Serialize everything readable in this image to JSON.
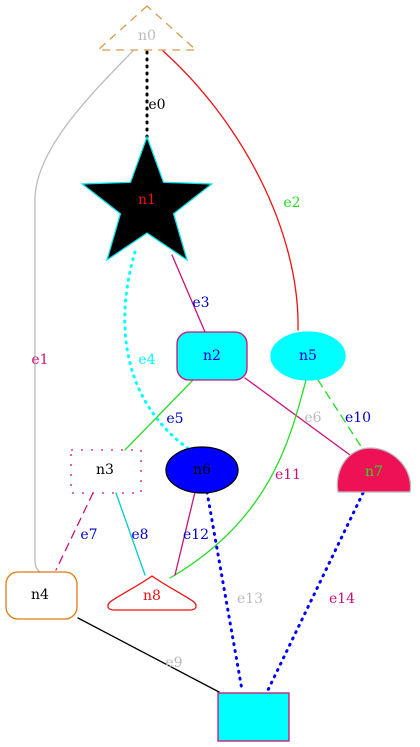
{
  "diagram": {
    "type": "directed-graph",
    "colors": {
      "red": "#ee1111",
      "crimson": "#dd1166",
      "green": "#22dd22",
      "cyan": "#00ffff",
      "blue": "#0000ff",
      "gray": "#bbbbbb",
      "black": "#000000",
      "orange": "#e07b10",
      "magenta": "#cc1177",
      "hotpink": "#ee1155"
    },
    "nodes": [
      {
        "id": "n0",
        "label": "n0",
        "shape": "triangle",
        "fill": "none",
        "stroke": "#d89a4a",
        "style": "dashed",
        "label_color": "#bbbbbb"
      },
      {
        "id": "n1",
        "label": "n1",
        "shape": "star",
        "fill": "#000000",
        "stroke": "#00e5ee",
        "style": "solid",
        "label_color": "#ee1111"
      },
      {
        "id": "n2",
        "label": "n2",
        "shape": "rounded-rectangle",
        "fill": "#00ffff",
        "stroke": "#cc1177",
        "style": "solid",
        "label_color": "#0000cc"
      },
      {
        "id": "n3",
        "label": "n3",
        "shape": "rectangle",
        "fill": "none",
        "stroke": "#dd1166",
        "style": "dotted",
        "label_color": "#000000"
      },
      {
        "id": "n4",
        "label": "n4",
        "shape": "rounded-rectangle",
        "fill": "none",
        "stroke": "#e07b10",
        "style": "solid",
        "label_color": "#000000"
      },
      {
        "id": "n5",
        "label": "n5",
        "shape": "ellipse",
        "fill": "#00ffff",
        "stroke": "#00ffff",
        "style": "solid",
        "label_color": "#0000cc"
      },
      {
        "id": "n6",
        "label": "n6",
        "shape": "ellipse",
        "fill": "#0000ff",
        "stroke": "#000000",
        "style": "solid",
        "label_color": "#000000"
      },
      {
        "id": "n7",
        "label": "n7",
        "shape": "egg",
        "fill": "#ee1155",
        "stroke": "#bbbbbb",
        "style": "solid",
        "label_color": "#22dd22"
      },
      {
        "id": "n8",
        "label": "n8",
        "shape": "rounded-triangle",
        "fill": "none",
        "stroke": "#ee1111",
        "style": "solid",
        "label_color": "#ee1111"
      },
      {
        "id": "n9",
        "label": "",
        "shape": "rectangle",
        "fill": "#00ffff",
        "stroke": "#cc1177",
        "style": "solid",
        "label_color": "#000000"
      }
    ],
    "edges": [
      {
        "id": "e0",
        "label": "e0",
        "from": "n0",
        "to": "n1",
        "color": "#000000",
        "style": "dotted",
        "label_color": "#000000"
      },
      {
        "id": "e1",
        "label": "e1",
        "from": "n0",
        "to": "n4",
        "color": "#bbbbbb",
        "style": "solid",
        "label_color": "#cc1177"
      },
      {
        "id": "e2",
        "label": "e2",
        "from": "n0",
        "to": "n5",
        "color": "#ee1111",
        "style": "solid",
        "label_color": "#22dd22"
      },
      {
        "id": "e3",
        "label": "e3",
        "from": "n1",
        "to": "n2",
        "color": "#cc1177",
        "style": "solid",
        "label_color": "#0000cc"
      },
      {
        "id": "e4",
        "label": "e4",
        "from": "n1",
        "to": "n6",
        "color": "#00ffff",
        "style": "dotted",
        "label_color": "#00ffff"
      },
      {
        "id": "e5",
        "label": "e5",
        "from": "n2",
        "to": "n3",
        "color": "#22dd22",
        "style": "solid",
        "label_color": "#0000cc"
      },
      {
        "id": "e6",
        "label": "e6",
        "from": "n2",
        "to": "n7",
        "color": "#cc1177",
        "style": "solid",
        "label_color": "#bbbbbb"
      },
      {
        "id": "e7",
        "label": "e7",
        "from": "n3",
        "to": "n4",
        "color": "#cc1177",
        "style": "dashed",
        "label_color": "#0000cc"
      },
      {
        "id": "e8",
        "label": "e8",
        "from": "n3",
        "to": "n8",
        "color": "#00cccc",
        "style": "solid",
        "label_color": "#0000cc"
      },
      {
        "id": "e9",
        "label": "e9",
        "from": "n4",
        "to": "n9",
        "color": "#000000",
        "style": "solid",
        "label_color": "#bbbbbb"
      },
      {
        "id": "e10",
        "label": "e10",
        "from": "n5",
        "to": "n7",
        "color": "#22dd22",
        "style": "dashed",
        "label_color": "#0000cc"
      },
      {
        "id": "e11",
        "label": "e11",
        "from": "n5",
        "to": "n8",
        "color": "#22dd22",
        "style": "solid",
        "label_color": "#cc1177"
      },
      {
        "id": "e12",
        "label": "e12",
        "from": "n6",
        "to": "n8",
        "color": "#cc1177",
        "style": "solid",
        "label_color": "#0000cc"
      },
      {
        "id": "e13",
        "label": "e13",
        "from": "n6",
        "to": "n9",
        "color": "#0000ff",
        "style": "dotted",
        "label_color": "#bbbbbb"
      },
      {
        "id": "e14",
        "label": "e14",
        "from": "n7",
        "to": "n9",
        "color": "#0000ff",
        "style": "dotted",
        "label_color": "#cc1177"
      }
    ]
  }
}
